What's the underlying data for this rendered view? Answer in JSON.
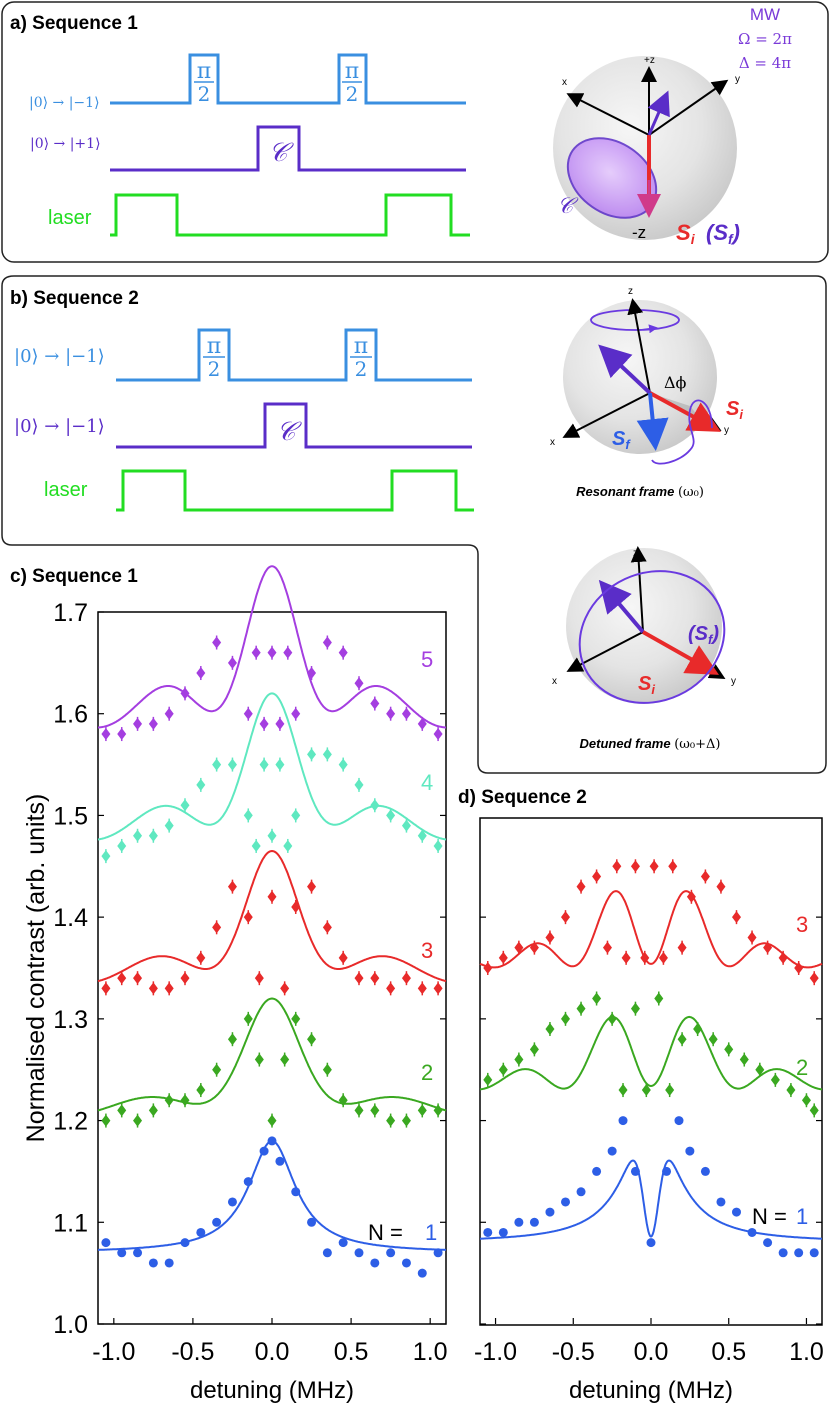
{
  "panel_a": {
    "title": "a) Sequence 1",
    "rows": [
      "|0⟩ → |−1⟩",
      "|0⟩ → |+1⟩",
      "laser"
    ],
    "pulse_top": "π",
    "pulse_bot": "2",
    "c_label": "𝒞",
    "mw_title": "MW",
    "mw_omega": "Ω = 2π",
    "mw_delta": "Δ = 4π",
    "axis_x": "x",
    "axis_y": "y",
    "axis_pz": "+z",
    "axis_mz": "-z",
    "sphere_c": "𝒞",
    "si": "S",
    "si_sub": "i",
    "sf": "(S",
    "sf_sub": "f",
    "sf_close": ")"
  },
  "panel_b": {
    "title": "b) Sequence 2",
    "rows": [
      "|0⟩ → |−1⟩",
      "|0⟩ → |−1⟩",
      "laser"
    ],
    "pulse_top": "π",
    "pulse_bot": "2",
    "c_label": "𝒞",
    "axis_x": "x",
    "axis_y": "y",
    "axis_z": "z",
    "dphi": "Δϕ",
    "si": "S",
    "si_sub": "i",
    "sf": "S",
    "sf_sub": "f",
    "resonant_caption": "Resonant frame",
    "resonant_freq": "(ω₀)",
    "sf2": "(S",
    "sf2_sub": "f",
    "sf2_close": ")",
    "detuned_caption": "Detuned frame",
    "detuned_freq": "(ω₀+Δ)"
  },
  "colors": {
    "light_blue": "#3a8fe0",
    "purple": "#5a2dc8",
    "green": "#22dd22",
    "red": "#e82a2a",
    "violet": "#a43ee0",
    "teal": "#5fe8c0",
    "dgreen": "#3aa820",
    "blue": "#2d5ee6",
    "mw": "#7a3ad8"
  },
  "chart_data": [
    {
      "title": "c) Sequence 1",
      "type": "scatter",
      "xlabel": "detuning (MHz)",
      "ylabel": "Normalised contrast (arb. units)",
      "xlim": [
        -1.1,
        1.1
      ],
      "ylim": [
        1.0,
        1.7
      ],
      "xticks": [
        "-1.0",
        "-0.5",
        "0.0",
        "0.5",
        "1.0"
      ],
      "yticks": [
        "1.0",
        "1.1",
        "1.2",
        "1.3",
        "1.4",
        "1.5",
        "1.6",
        "1.7"
      ],
      "n_label": "N =",
      "series": [
        {
          "name": "1",
          "baseline": 1.07,
          "x": [
            -1.05,
            -0.95,
            -0.85,
            -0.75,
            -0.65,
            -0.55,
            -0.45,
            -0.35,
            -0.25,
            -0.15,
            -0.05,
            0.0,
            0.05,
            0.15,
            0.25,
            0.35,
            0.45,
            0.55,
            0.65,
            0.75,
            0.85,
            0.95,
            1.05
          ],
          "values": [
            1.08,
            1.07,
            1.07,
            1.06,
            1.06,
            1.08,
            1.09,
            1.1,
            1.12,
            1.14,
            1.17,
            1.18,
            1.16,
            1.13,
            1.1,
            1.07,
            1.08,
            1.07,
            1.06,
            1.07,
            1.06,
            1.05,
            1.07
          ]
        },
        {
          "name": "2",
          "baseline": 1.2,
          "x": [
            -1.05,
            -0.95,
            -0.85,
            -0.75,
            -0.65,
            -0.55,
            -0.45,
            -0.35,
            -0.25,
            -0.15,
            -0.08,
            0.0,
            0.08,
            0.15,
            0.25,
            0.35,
            0.45,
            0.55,
            0.65,
            0.75,
            0.85,
            0.95,
            1.05
          ],
          "values": [
            1.2,
            1.21,
            1.2,
            1.21,
            1.22,
            1.22,
            1.23,
            1.25,
            1.28,
            1.3,
            1.26,
            1.2,
            1.26,
            1.3,
            1.28,
            1.25,
            1.22,
            1.21,
            1.21,
            1.2,
            1.2,
            1.21,
            1.21
          ]
        },
        {
          "name": "3",
          "baseline": 1.33,
          "x": [
            -1.05,
            -0.95,
            -0.85,
            -0.75,
            -0.65,
            -0.55,
            -0.45,
            -0.35,
            -0.25,
            -0.15,
            -0.08,
            0.0,
            0.08,
            0.15,
            0.25,
            0.35,
            0.45,
            0.55,
            0.65,
            0.75,
            0.85,
            0.95,
            1.05
          ],
          "values": [
            1.33,
            1.34,
            1.34,
            1.33,
            1.33,
            1.34,
            1.36,
            1.39,
            1.43,
            1.4,
            1.34,
            1.42,
            1.33,
            1.41,
            1.43,
            1.39,
            1.36,
            1.34,
            1.34,
            1.33,
            1.34,
            1.33,
            1.33
          ]
        },
        {
          "name": "4",
          "baseline": 1.47,
          "x": [
            -1.05,
            -0.95,
            -0.85,
            -0.75,
            -0.65,
            -0.55,
            -0.45,
            -0.35,
            -0.25,
            -0.15,
            -0.1,
            -0.05,
            0.0,
            0.05,
            0.1,
            0.15,
            0.25,
            0.35,
            0.45,
            0.55,
            0.65,
            0.75,
            0.85,
            0.95,
            1.05
          ],
          "values": [
            1.46,
            1.47,
            1.48,
            1.48,
            1.49,
            1.51,
            1.53,
            1.55,
            1.55,
            1.5,
            1.47,
            1.55,
            1.48,
            1.55,
            1.47,
            1.5,
            1.56,
            1.56,
            1.55,
            1.53,
            1.51,
            1.5,
            1.49,
            1.48,
            1.47
          ]
        },
        {
          "name": "5",
          "baseline": 1.58,
          "x": [
            -1.05,
            -0.95,
            -0.85,
            -0.75,
            -0.65,
            -0.55,
            -0.45,
            -0.35,
            -0.25,
            -0.15,
            -0.1,
            -0.05,
            0.0,
            0.05,
            0.1,
            0.15,
            0.25,
            0.35,
            0.45,
            0.55,
            0.65,
            0.75,
            0.85,
            0.95,
            1.05
          ],
          "values": [
            1.58,
            1.58,
            1.59,
            1.59,
            1.6,
            1.62,
            1.64,
            1.67,
            1.65,
            1.6,
            1.66,
            1.59,
            1.66,
            1.59,
            1.66,
            1.6,
            1.64,
            1.67,
            1.66,
            1.63,
            1.61,
            1.6,
            1.6,
            1.59,
            1.58
          ]
        }
      ]
    },
    {
      "title": "d) Sequence 2",
      "type": "scatter",
      "xlabel": "detuning (MHz)",
      "ylabel": "",
      "xlim": [
        -1.1,
        1.1
      ],
      "ylim": [
        1.0,
        1.7
      ],
      "xticks": [
        "-1.0",
        "-0.5",
        "0.0",
        "0.5",
        "1.0"
      ],
      "n_label": "N =",
      "series": [
        {
          "name": "1",
          "baseline": 1.08,
          "x": [
            -1.05,
            -0.95,
            -0.85,
            -0.75,
            -0.65,
            -0.55,
            -0.45,
            -0.35,
            -0.25,
            -0.18,
            -0.1,
            0.0,
            0.1,
            0.18,
            0.25,
            0.35,
            0.45,
            0.55,
            0.65,
            0.75,
            0.85,
            0.95,
            1.05
          ],
          "values": [
            1.09,
            1.09,
            1.1,
            1.1,
            1.11,
            1.12,
            1.13,
            1.15,
            1.17,
            1.2,
            1.15,
            1.08,
            1.15,
            1.2,
            1.17,
            1.15,
            1.12,
            1.11,
            1.09,
            1.08,
            1.07,
            1.07,
            1.07
          ]
        },
        {
          "name": "2",
          "baseline": 1.23,
          "x": [
            -1.05,
            -0.95,
            -0.85,
            -0.75,
            -0.65,
            -0.55,
            -0.45,
            -0.35,
            -0.25,
            -0.18,
            -0.1,
            -0.03,
            0.05,
            0.12,
            0.2,
            0.3,
            0.4,
            0.5,
            0.6,
            0.7,
            0.8,
            0.9,
            1.0,
            1.05
          ],
          "values": [
            1.24,
            1.25,
            1.26,
            1.27,
            1.29,
            1.3,
            1.31,
            1.32,
            1.3,
            1.23,
            1.31,
            1.23,
            1.32,
            1.23,
            1.28,
            1.29,
            1.28,
            1.27,
            1.26,
            1.25,
            1.24,
            1.23,
            1.22,
            1.21
          ]
        },
        {
          "name": "3",
          "baseline": 1.35,
          "x": [
            -1.05,
            -0.95,
            -0.85,
            -0.75,
            -0.65,
            -0.55,
            -0.45,
            -0.35,
            -0.28,
            -0.22,
            -0.16,
            -0.1,
            -0.04,
            0.02,
            0.08,
            0.14,
            0.2,
            0.26,
            0.35,
            0.45,
            0.55,
            0.65,
            0.75,
            0.85,
            0.95,
            1.05
          ],
          "values": [
            1.35,
            1.36,
            1.37,
            1.37,
            1.38,
            1.4,
            1.43,
            1.44,
            1.37,
            1.45,
            1.36,
            1.45,
            1.36,
            1.45,
            1.36,
            1.45,
            1.37,
            1.42,
            1.44,
            1.43,
            1.4,
            1.38,
            1.37,
            1.36,
            1.35,
            1.34
          ]
        }
      ]
    }
  ]
}
